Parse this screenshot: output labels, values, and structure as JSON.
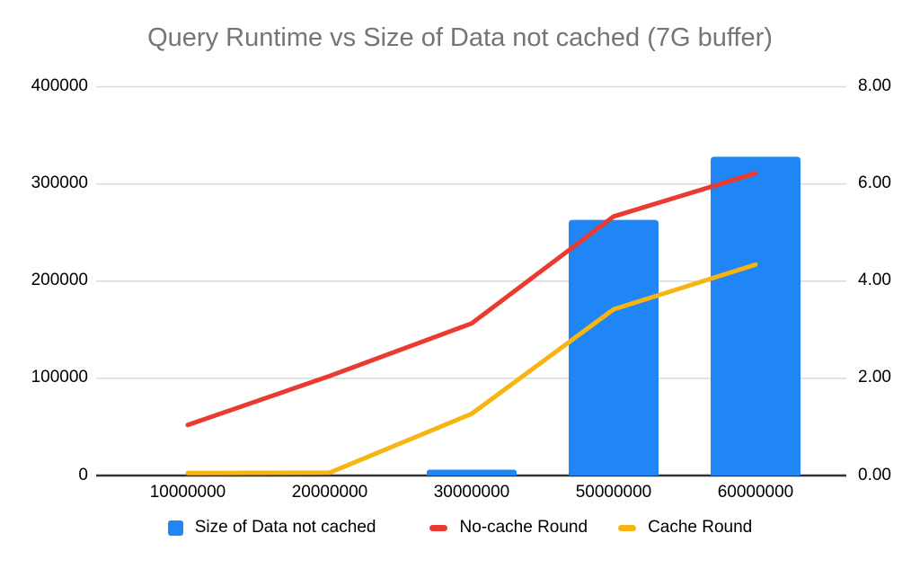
{
  "title": "Query Runtime vs Size of Data not cached (7G buffer)",
  "colors": {
    "bar_blue": "#2186f5",
    "line_red": "#ea3b33",
    "line_yellow": "#f7b512",
    "title_gray": "#757575",
    "gridline": "#dadada",
    "baseline": "#333333",
    "axis_text": "#000000"
  },
  "chart_data": {
    "type": "combo",
    "title": "Query Runtime vs Size of Data not cached (7G buffer)",
    "categories": [
      "10000000",
      "20000000",
      "30000000",
      "50000000",
      "60000000"
    ],
    "series": [
      {
        "name": "Size of Data not cached",
        "type": "bar",
        "axis": "left",
        "color": "#2186f5",
        "values": [
          0,
          0,
          6000,
          263000,
          328000
        ]
      },
      {
        "name": "No-cache Round",
        "type": "line",
        "axis": "right",
        "color": "#ea3b33",
        "values": [
          1.04,
          2.05,
          3.13,
          5.33,
          6.22
        ]
      },
      {
        "name": "Cache Round",
        "type": "line",
        "axis": "right",
        "color": "#f7b512",
        "values": [
          0.05,
          0.06,
          1.27,
          3.42,
          4.34
        ]
      }
    ],
    "left_axis": {
      "min": 0,
      "max": 400000,
      "ticks": [
        "400000",
        "300000",
        "200000",
        "100000",
        "0"
      ]
    },
    "right_axis": {
      "min": 0,
      "max": 8,
      "ticks": [
        "8.00",
        "6.00",
        "4.00",
        "2.00",
        "0.00"
      ]
    },
    "grid": true,
    "legend_position": "bottom"
  },
  "legend": {
    "items": [
      {
        "label": "Size of Data not cached",
        "swatch": "square",
        "color": "#2186f5"
      },
      {
        "label": "No-cache Round",
        "swatch": "dash",
        "color": "#ea3b33"
      },
      {
        "label": "Cache Round",
        "swatch": "dash",
        "color": "#f7b512"
      }
    ]
  }
}
